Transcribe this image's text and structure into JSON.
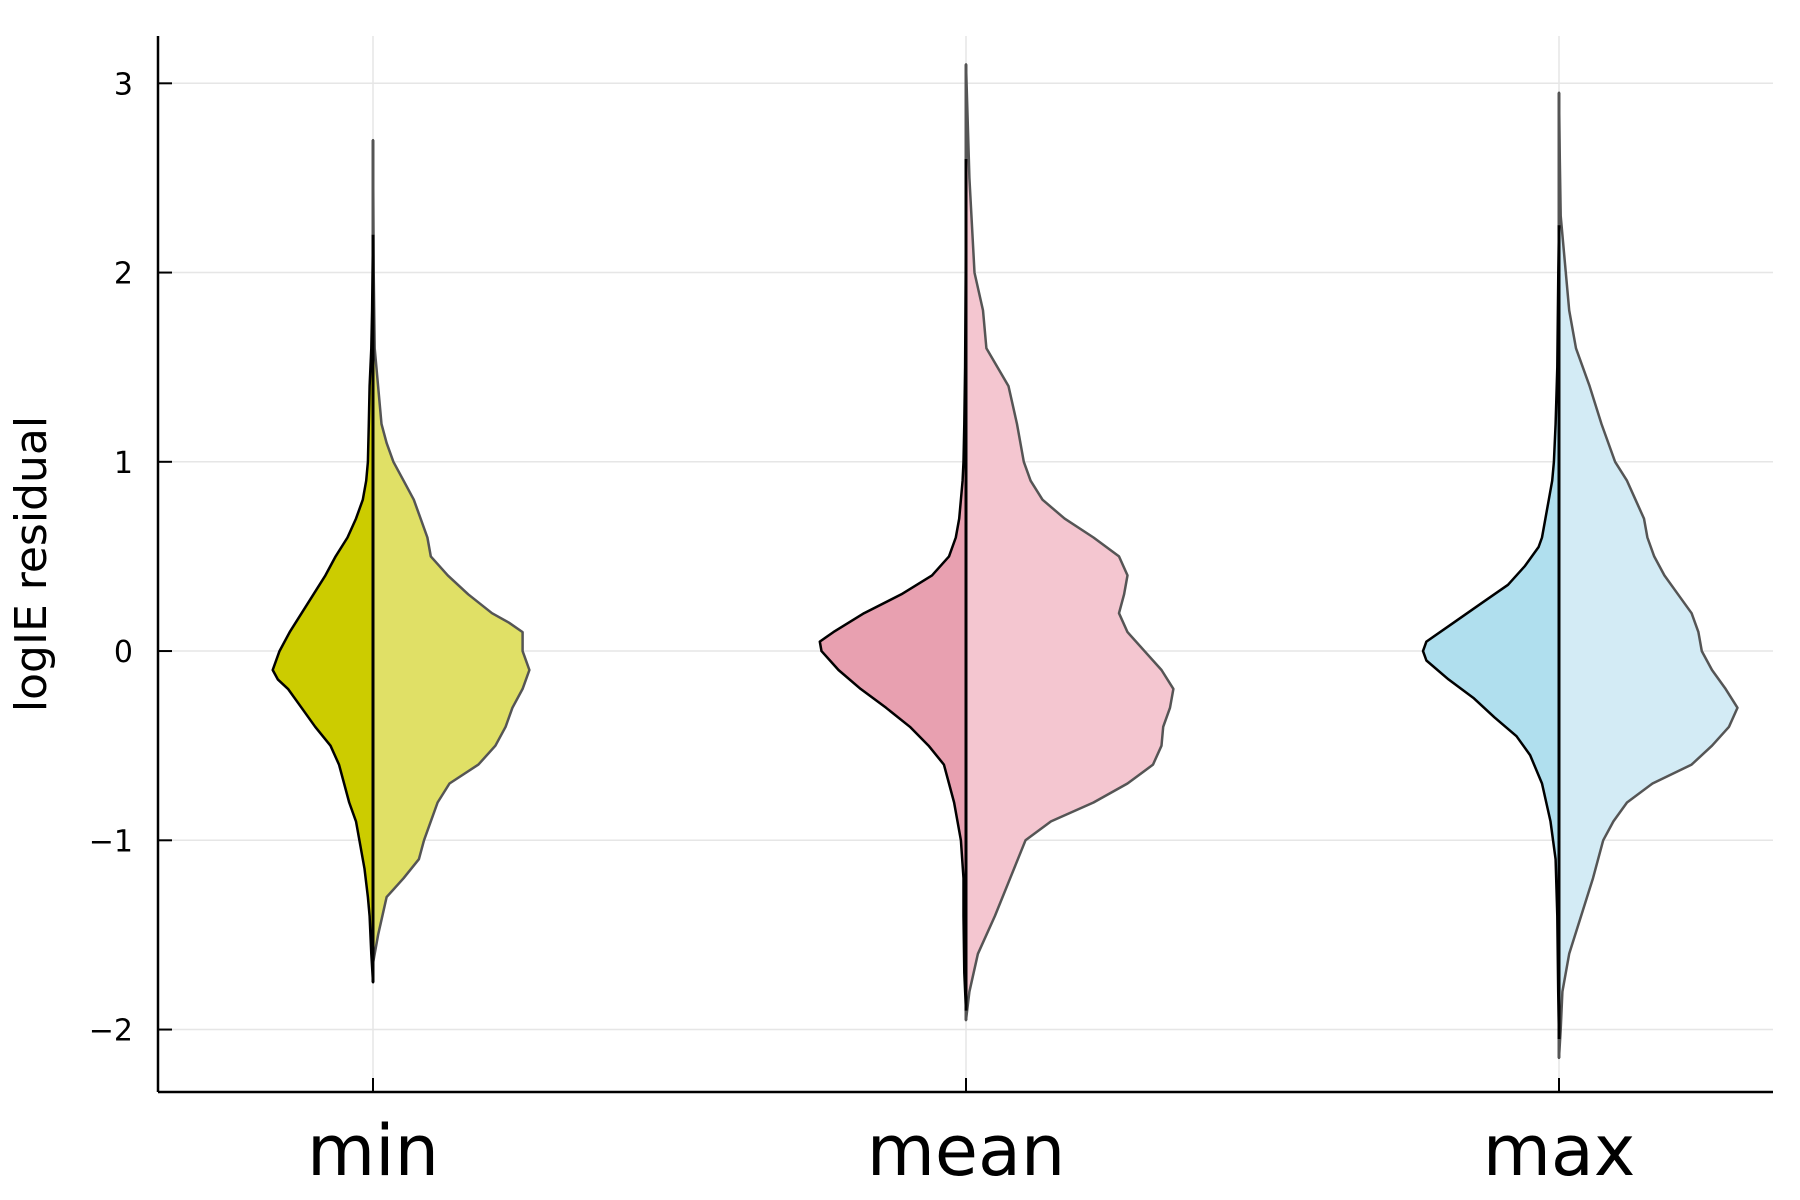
{
  "chart_data": {
    "type": "violin",
    "ylabel": "logIE residual",
    "ylim": [
      -2.33,
      3.25
    ],
    "yticks": [
      -2,
      -1,
      0,
      1,
      2,
      3
    ],
    "ytick_labels": [
      "−2",
      "−1",
      "0",
      "1",
      "2",
      "3"
    ],
    "grid": true,
    "categories": [
      "min",
      "mean",
      "max"
    ],
    "groups": [
      {
        "category": "min",
        "left": {
          "color": "#cccc00",
          "y_range": [
            -1.75,
            2.2
          ],
          "profile": [
            [
              -1.75,
              0
            ],
            [
              -1.6,
              0.01
            ],
            [
              -1.4,
              0.02
            ],
            [
              -1.3,
              0.03
            ],
            [
              -1.15,
              0.05
            ],
            [
              -1.0,
              0.08
            ],
            [
              -0.9,
              0.1
            ],
            [
              -0.8,
              0.14
            ],
            [
              -0.7,
              0.17
            ],
            [
              -0.6,
              0.2
            ],
            [
              -0.5,
              0.25
            ],
            [
              -0.4,
              0.34
            ],
            [
              -0.3,
              0.42
            ],
            [
              -0.2,
              0.5
            ],
            [
              -0.15,
              0.56
            ],
            [
              -0.1,
              0.59
            ],
            [
              0.0,
              0.55
            ],
            [
              0.1,
              0.49
            ],
            [
              0.2,
              0.42
            ],
            [
              0.3,
              0.35
            ],
            [
              0.4,
              0.28
            ],
            [
              0.5,
              0.22
            ],
            [
              0.6,
              0.15
            ],
            [
              0.7,
              0.1
            ],
            [
              0.8,
              0.06
            ],
            [
              0.9,
              0.04
            ],
            [
              1.0,
              0.03
            ],
            [
              1.2,
              0.025
            ],
            [
              1.4,
              0.02
            ],
            [
              1.6,
              0.01
            ],
            [
              1.8,
              0.005
            ],
            [
              2.2,
              0
            ]
          ]
        },
        "right": {
          "color": "#e0e066",
          "y_range": [
            -1.65,
            2.7
          ],
          "profile": [
            [
              -1.65,
              0
            ],
            [
              -1.5,
              0.03
            ],
            [
              -1.3,
              0.08
            ],
            [
              -1.2,
              0.18
            ],
            [
              -1.1,
              0.27
            ],
            [
              -1.0,
              0.3
            ],
            [
              -0.8,
              0.38
            ],
            [
              -0.7,
              0.45
            ],
            [
              -0.6,
              0.62
            ],
            [
              -0.5,
              0.72
            ],
            [
              -0.4,
              0.78
            ],
            [
              -0.3,
              0.82
            ],
            [
              -0.2,
              0.88
            ],
            [
              -0.1,
              0.92
            ],
            [
              0.0,
              0.88
            ],
            [
              0.1,
              0.88
            ],
            [
              0.15,
              0.8
            ],
            [
              0.2,
              0.7
            ],
            [
              0.3,
              0.56
            ],
            [
              0.4,
              0.44
            ],
            [
              0.5,
              0.34
            ],
            [
              0.6,
              0.32
            ],
            [
              0.7,
              0.28
            ],
            [
              0.8,
              0.24
            ],
            [
              0.9,
              0.18
            ],
            [
              1.0,
              0.12
            ],
            [
              1.1,
              0.08
            ],
            [
              1.2,
              0.05
            ],
            [
              1.4,
              0.03
            ],
            [
              1.6,
              0.01
            ],
            [
              2.0,
              0.004
            ],
            [
              2.7,
              0
            ]
          ]
        }
      },
      {
        "category": "mean",
        "left": {
          "color": "#e8a0b0",
          "y_range": [
            -1.9,
            2.6
          ],
          "profile": [
            [
              -1.9,
              0
            ],
            [
              -1.7,
              0.01
            ],
            [
              -1.4,
              0.015
            ],
            [
              -1.2,
              0.015
            ],
            [
              -1.0,
              0.03
            ],
            [
              -0.8,
              0.07
            ],
            [
              -0.7,
              0.1
            ],
            [
              -0.6,
              0.13
            ],
            [
              -0.5,
              0.22
            ],
            [
              -0.4,
              0.33
            ],
            [
              -0.3,
              0.47
            ],
            [
              -0.2,
              0.62
            ],
            [
              -0.1,
              0.75
            ],
            [
              0.0,
              0.85
            ],
            [
              0.05,
              0.86
            ],
            [
              0.1,
              0.78
            ],
            [
              0.2,
              0.6
            ],
            [
              0.3,
              0.38
            ],
            [
              0.4,
              0.2
            ],
            [
              0.5,
              0.1
            ],
            [
              0.6,
              0.06
            ],
            [
              0.7,
              0.04
            ],
            [
              0.8,
              0.03
            ],
            [
              0.9,
              0.02
            ],
            [
              1.0,
              0.015
            ],
            [
              1.2,
              0.01
            ],
            [
              1.5,
              0.005
            ],
            [
              2.0,
              0.002
            ],
            [
              2.6,
              0
            ]
          ]
        },
        "right": {
          "color": "#f4c6d0",
          "y_range": [
            -1.95,
            3.1
          ],
          "profile": [
            [
              -1.95,
              0
            ],
            [
              -1.8,
              0.02
            ],
            [
              -1.6,
              0.07
            ],
            [
              -1.4,
              0.17
            ],
            [
              -1.2,
              0.26
            ],
            [
              -1.0,
              0.35
            ],
            [
              -0.9,
              0.5
            ],
            [
              -0.8,
              0.75
            ],
            [
              -0.7,
              0.95
            ],
            [
              -0.6,
              1.1
            ],
            [
              -0.5,
              1.15
            ],
            [
              -0.4,
              1.16
            ],
            [
              -0.3,
              1.2
            ],
            [
              -0.2,
              1.22
            ],
            [
              -0.1,
              1.15
            ],
            [
              0.0,
              1.05
            ],
            [
              0.1,
              0.95
            ],
            [
              0.2,
              0.9
            ],
            [
              0.3,
              0.93
            ],
            [
              0.4,
              0.95
            ],
            [
              0.5,
              0.9
            ],
            [
              0.6,
              0.75
            ],
            [
              0.7,
              0.58
            ],
            [
              0.8,
              0.45
            ],
            [
              0.9,
              0.38
            ],
            [
              1.0,
              0.34
            ],
            [
              1.2,
              0.3
            ],
            [
              1.4,
              0.25
            ],
            [
              1.6,
              0.12
            ],
            [
              1.8,
              0.1
            ],
            [
              2.0,
              0.05
            ],
            [
              2.5,
              0.02
            ],
            [
              3.1,
              0
            ]
          ]
        }
      },
      {
        "category": "max",
        "left": {
          "color": "#b0dfee",
          "y_range": [
            -2.05,
            2.25
          ],
          "profile": [
            [
              -2.05,
              0
            ],
            [
              -1.8,
              0.005
            ],
            [
              -1.4,
              0.01
            ],
            [
              -1.1,
              0.02
            ],
            [
              -0.9,
              0.05
            ],
            [
              -0.7,
              0.1
            ],
            [
              -0.55,
              0.17
            ],
            [
              -0.45,
              0.25
            ],
            [
              -0.35,
              0.38
            ],
            [
              -0.25,
              0.5
            ],
            [
              -0.15,
              0.65
            ],
            [
              -0.05,
              0.78
            ],
            [
              0.0,
              0.8
            ],
            [
              0.05,
              0.78
            ],
            [
              0.15,
              0.62
            ],
            [
              0.25,
              0.46
            ],
            [
              0.35,
              0.3
            ],
            [
              0.45,
              0.2
            ],
            [
              0.55,
              0.12
            ],
            [
              0.6,
              0.1
            ],
            [
              0.7,
              0.08
            ],
            [
              0.8,
              0.06
            ],
            [
              0.9,
              0.04
            ],
            [
              1.0,
              0.03
            ],
            [
              1.2,
              0.02
            ],
            [
              1.5,
              0.01
            ],
            [
              2.0,
              0.004
            ],
            [
              2.25,
              0
            ]
          ]
        },
        "right": {
          "color": "#d3ebf5",
          "y_range": [
            -2.15,
            2.95
          ],
          "profile": [
            [
              -2.15,
              0
            ],
            [
              -2.0,
              0.01
            ],
            [
              -1.8,
              0.02
            ],
            [
              -1.6,
              0.06
            ],
            [
              -1.4,
              0.13
            ],
            [
              -1.2,
              0.2
            ],
            [
              -1.0,
              0.26
            ],
            [
              -0.9,
              0.32
            ],
            [
              -0.8,
              0.4
            ],
            [
              -0.7,
              0.55
            ],
            [
              -0.6,
              0.78
            ],
            [
              -0.5,
              0.9
            ],
            [
              -0.4,
              1.0
            ],
            [
              -0.3,
              1.05
            ],
            [
              -0.2,
              0.98
            ],
            [
              -0.1,
              0.9
            ],
            [
              0.0,
              0.84
            ],
            [
              0.1,
              0.82
            ],
            [
              0.2,
              0.78
            ],
            [
              0.3,
              0.7
            ],
            [
              0.4,
              0.62
            ],
            [
              0.5,
              0.56
            ],
            [
              0.6,
              0.52
            ],
            [
              0.7,
              0.5
            ],
            [
              0.8,
              0.45
            ],
            [
              0.9,
              0.4
            ],
            [
              1.0,
              0.33
            ],
            [
              1.2,
              0.25
            ],
            [
              1.4,
              0.18
            ],
            [
              1.6,
              0.1
            ],
            [
              1.8,
              0.06
            ],
            [
              2.0,
              0.04
            ],
            [
              2.3,
              0.01
            ],
            [
              2.6,
              0.005
            ],
            [
              2.95,
              0
            ]
          ]
        }
      }
    ]
  }
}
